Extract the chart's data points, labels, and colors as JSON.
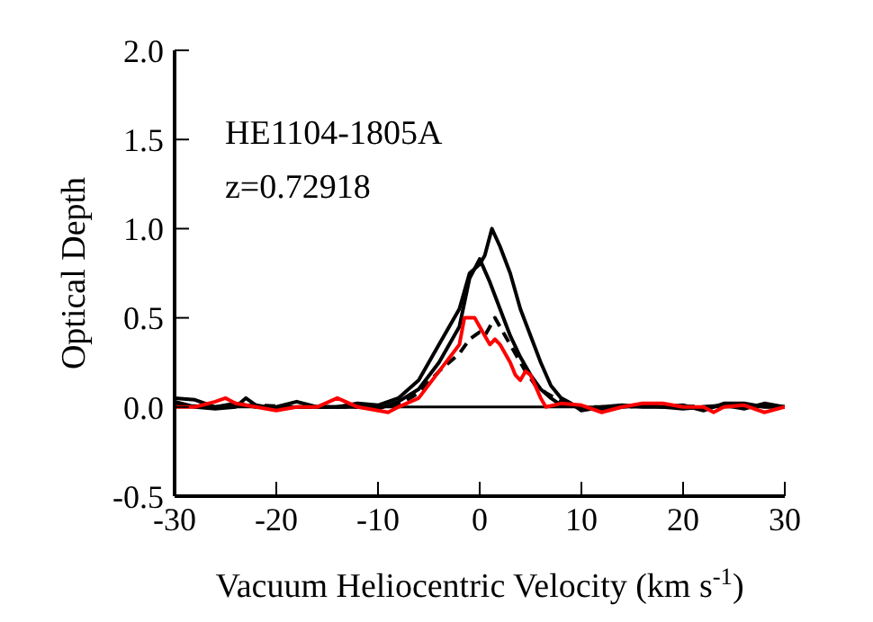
{
  "chart_data": {
    "type": "line",
    "xlabel": "Vacuum Heliocentric Velocity (km s$^{-1}$)",
    "ylabel": "Optical Depth",
    "annotations": [
      "HE1104-1805A",
      "z=0.72918"
    ],
    "xlim": [
      -30,
      30
    ],
    "xticks": [
      -30,
      -20,
      -10,
      0,
      10,
      20,
      30
    ],
    "ylim": [
      -0.5,
      2.0
    ],
    "yticks": [
      {
        "value": -0.5,
        "label": "-0.5"
      },
      {
        "value": 0,
        "label": "0.0"
      },
      {
        "value": 0.5,
        "label": "0.5"
      },
      {
        "value": 1.0,
        "label": "1.0"
      },
      {
        "value": 1.5,
        "label": "1.5"
      },
      {
        "value": 2.0,
        "label": "2.0"
      }
    ],
    "grid": false,
    "legend": false,
    "marker": "none",
    "ref_lines": [
      {
        "axis": "y",
        "value": 0,
        "color": "#000000"
      }
    ],
    "series": [
      {
        "color": "#000000",
        "line_style": "solid",
        "x": [
          -30,
          -28,
          -26,
          -24,
          -22,
          -20,
          -18,
          -16,
          -14,
          -12,
          -10,
          -8,
          -6,
          -4,
          -2,
          -1,
          0,
          0.5,
          1.2,
          2,
          3,
          4,
          5,
          6,
          7,
          8,
          9,
          10,
          12,
          14,
          16,
          18,
          20,
          22,
          24,
          26,
          28,
          30
        ],
        "values": [
          0.05,
          0.04,
          0.0,
          0.02,
          0.0,
          0.0,
          0.03,
          0.0,
          0.0,
          0.02,
          0.01,
          0.05,
          0.15,
          0.35,
          0.55,
          0.75,
          0.8,
          0.85,
          1.0,
          0.9,
          0.75,
          0.55,
          0.4,
          0.25,
          0.12,
          0.05,
          0.02,
          -0.02,
          0.0,
          0.01,
          0.0,
          0.0,
          0.01,
          -0.02,
          0.02,
          0.02,
          0.0,
          0.0
        ]
      },
      {
        "color": "#000000",
        "line_style": "solid",
        "x": [
          -30,
          -28,
          -26,
          -24,
          -23,
          -22,
          -20,
          -18,
          -16,
          -14,
          -12,
          -10,
          -8,
          -6,
          -4,
          -2,
          -1,
          0,
          1,
          2,
          3,
          4,
          5,
          6,
          7,
          8,
          10,
          12,
          14,
          16,
          18,
          20,
          22,
          24,
          26,
          28,
          30
        ],
        "values": [
          0.03,
          0.0,
          -0.01,
          0.0,
          0.05,
          0.01,
          -0.01,
          0.0,
          0.0,
          0.0,
          0.0,
          -0.01,
          0.03,
          0.1,
          0.25,
          0.45,
          0.72,
          0.83,
          0.7,
          0.55,
          0.4,
          0.28,
          0.18,
          0.1,
          0.05,
          0.01,
          0.0,
          -0.02,
          0.0,
          0.01,
          0.0,
          -0.01,
          0.0,
          0.01,
          -0.01,
          0.02,
          0.0
        ]
      },
      {
        "color": "#000000",
        "line_style": "dashed",
        "x": [
          -30,
          -26,
          -22,
          -18,
          -14,
          -10,
          -8,
          -6,
          -4,
          -2,
          -1,
          0,
          0.5,
          1.5,
          2.5,
          3.5,
          4.5,
          5.5,
          6.5,
          8,
          10,
          14,
          18,
          22,
          26,
          30
        ],
        "values": [
          0.01,
          0.0,
          0.01,
          0.0,
          0.0,
          0.0,
          0.01,
          0.08,
          0.2,
          0.3,
          0.38,
          0.42,
          0.4,
          0.5,
          0.4,
          0.3,
          0.2,
          0.12,
          0.08,
          0.03,
          0.0,
          0.0,
          0.01,
          0.0,
          0.01,
          0.0
        ]
      },
      {
        "color": "#ff0000",
        "line_style": "solid",
        "x": [
          -30,
          -28,
          -26,
          -25,
          -24,
          -22,
          -20,
          -18,
          -16,
          -14,
          -12,
          -10,
          -9,
          -8,
          -6,
          -4,
          -2,
          -1.5,
          -0.5,
          0,
          0.5,
          1,
          1.5,
          2,
          3,
          3.5,
          4,
          4.5,
          5,
          6,
          6.5,
          8,
          10,
          12,
          14,
          16,
          18,
          20,
          22,
          23,
          24,
          26,
          28,
          30
        ],
        "values": [
          0.0,
          0.0,
          0.03,
          0.05,
          0.02,
          0.0,
          -0.02,
          0.0,
          0.0,
          0.05,
          0.0,
          -0.02,
          -0.03,
          0.0,
          0.05,
          0.2,
          0.35,
          0.5,
          0.5,
          0.45,
          0.4,
          0.35,
          0.38,
          0.35,
          0.25,
          0.18,
          0.15,
          0.2,
          0.18,
          0.05,
          0.0,
          0.02,
          0.01,
          -0.03,
          0.0,
          0.02,
          0.02,
          0.0,
          0.0,
          -0.03,
          0.0,
          0.01,
          -0.03,
          0.0
        ]
      }
    ]
  }
}
